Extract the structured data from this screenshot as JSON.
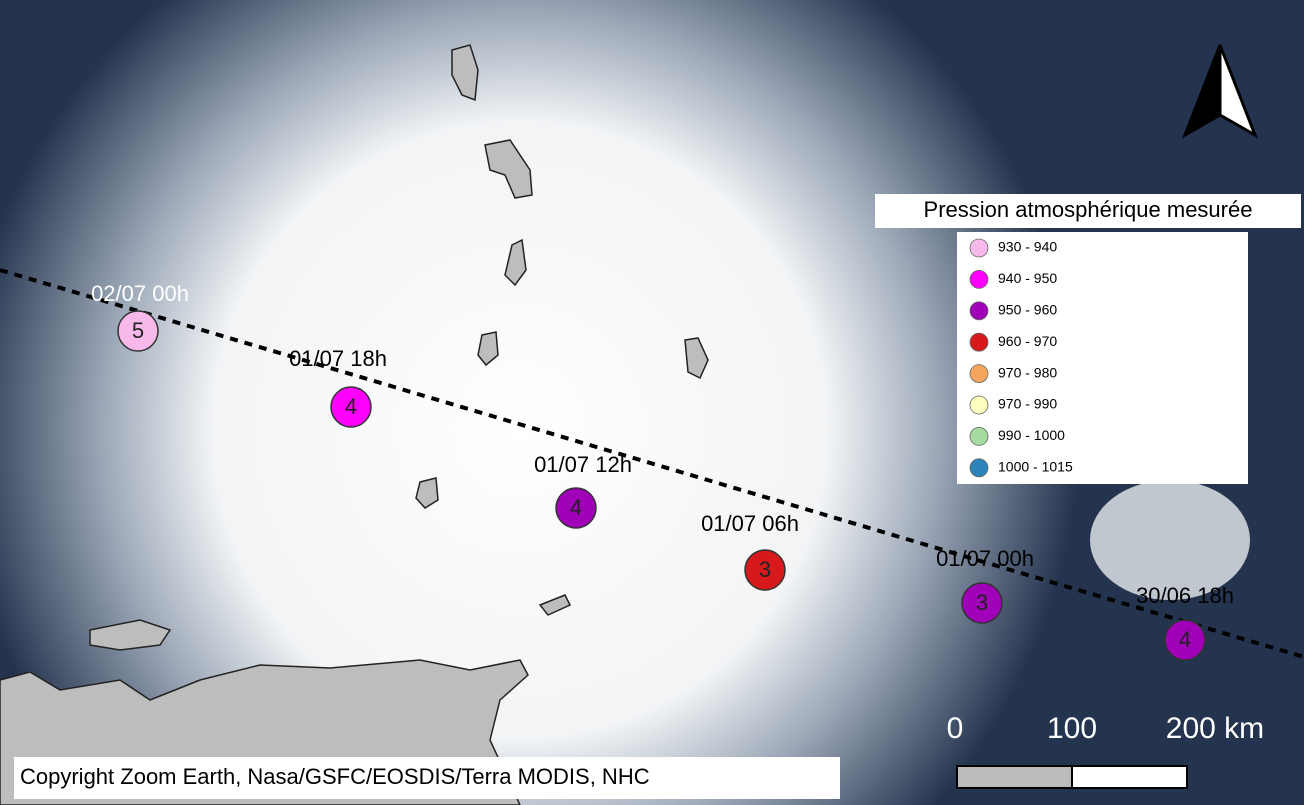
{
  "track": {
    "points": [
      {
        "time": "02/07 00h",
        "category": 5,
        "color": "#f9b8ea"
      },
      {
        "time": "01/07 18h",
        "category": 4,
        "color": "#ff00ff"
      },
      {
        "time": "01/07 12h",
        "category": 4,
        "color": "#a000b8"
      },
      {
        "time": "01/07 06h",
        "category": 3,
        "color": "#d7191c"
      },
      {
        "time": "01/07 00h",
        "category": 3,
        "color": "#a000b8"
      },
      {
        "time": "30/06 18h",
        "category": 4,
        "color": "#a000b8"
      }
    ]
  },
  "legend": {
    "title": "Pression atmosphérique mesurée",
    "items": [
      {
        "label": "930 - 940",
        "color": "#f9b8ea"
      },
      {
        "label": "940 - 950",
        "color": "#ff00ff"
      },
      {
        "label": "950 - 960",
        "color": "#a000b8"
      },
      {
        "label": "960 - 970",
        "color": "#d7191c"
      },
      {
        "label": "970 - 980",
        "color": "#f5a55c"
      },
      {
        "label": "970 - 990",
        "color": "#ffffc0"
      },
      {
        "label": "990 - 1000",
        "color": "#a6dba0"
      },
      {
        "label": "1000 - 1015",
        "color": "#2b83ba"
      }
    ]
  },
  "scale_bar": {
    "labels": [
      "0",
      "100",
      "200 km"
    ]
  },
  "copyright": "Copyright Zoom Earth, Nasa/GSFC/EOSDIS/Terra MODIS, NHC"
}
